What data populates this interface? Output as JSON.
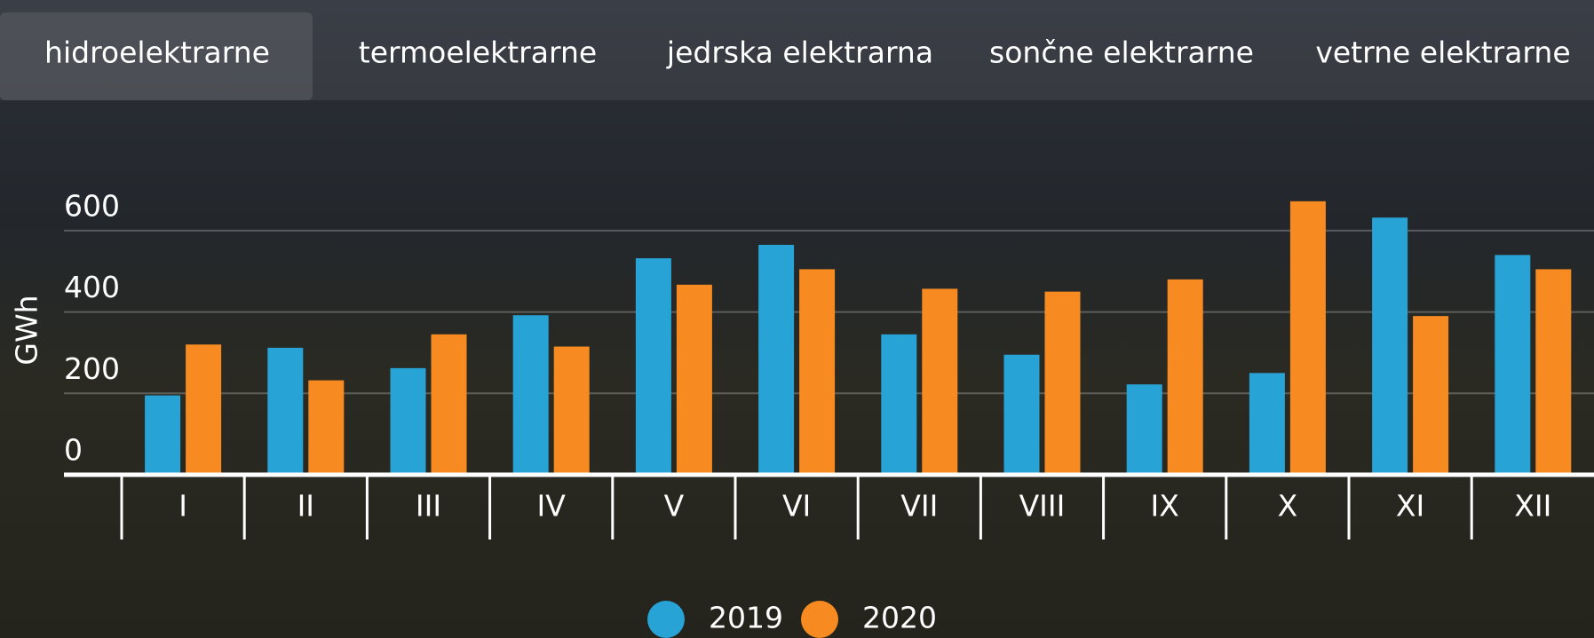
{
  "tabs": [
    "hidroelektrarne",
    "termoelektrarne",
    "jedrska elektrarna",
    "sončne elektrarne",
    "vetrne elektrarne"
  ],
  "active_tab": 0,
  "chart_data": {
    "type": "bar",
    "y_label": "GWh",
    "categories": [
      "I",
      "II",
      "III",
      "IV",
      "V",
      "VI",
      "VII",
      "VIII",
      "IX",
      "X",
      "XI",
      "XII"
    ],
    "series": [
      {
        "name": "2019",
        "color": "#27a3d6",
        "values": [
          195,
          312,
          262,
          392,
          532,
          565,
          345,
          295,
          222,
          250,
          632,
          540
        ]
      },
      {
        "name": "2020",
        "color": "#f78b21",
        "values": [
          320,
          232,
          345,
          315,
          467,
          505,
          457,
          450,
          480,
          672,
          390,
          505
        ]
      }
    ],
    "ylim": [
      0,
      700
    ],
    "yticks": [
      0,
      200,
      400,
      600
    ],
    "grid": true
  }
}
